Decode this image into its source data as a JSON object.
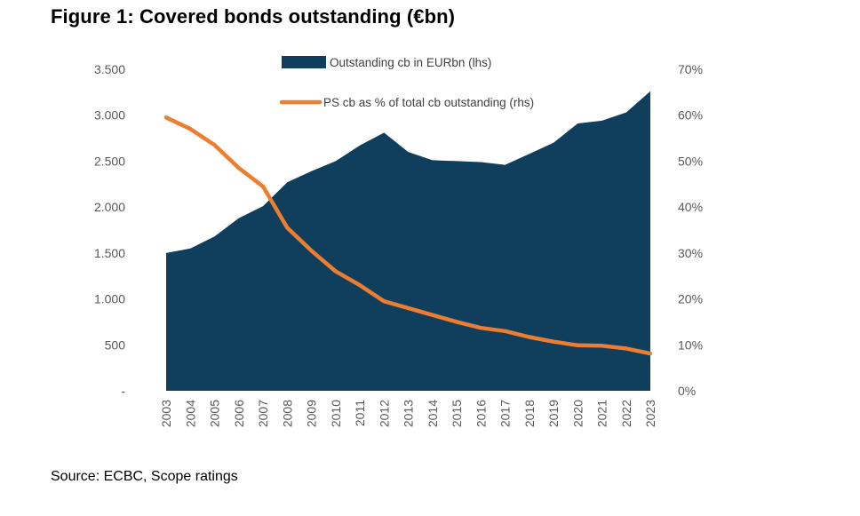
{
  "title": "Figure 1: Covered bonds outstanding (€bn)",
  "source": "Source: ECBC, Scope ratings",
  "colors": {
    "area": "#0f3f5c",
    "line": "#ed7d31",
    "axis_text": "#595959"
  },
  "chart_data": {
    "type": "area",
    "categories": [
      "2003",
      "2004",
      "2005",
      "2006",
      "2007",
      "2008",
      "2009",
      "2010",
      "2011",
      "2012",
      "2013",
      "2014",
      "2015",
      "2016",
      "2017",
      "2018",
      "2019",
      "2020",
      "2021",
      "2022",
      "2023"
    ],
    "series": [
      {
        "name": "Outstanding cb in EURbn (lhs)",
        "type": "area",
        "axis": "left",
        "values": [
          1500,
          1550,
          1680,
          1880,
          2010,
          2270,
          2390,
          2500,
          2670,
          2810,
          2600,
          2510,
          2500,
          2490,
          2460,
          2580,
          2700,
          2910,
          2940,
          3030,
          3260
        ]
      },
      {
        "name": "PS cb as % of total cb outstanding  (rhs)",
        "type": "line",
        "axis": "right",
        "values": [
          59.5,
          57.0,
          53.5,
          48.5,
          44.5,
          35.5,
          30.5,
          26.0,
          23.0,
          19.5,
          18.0,
          16.5,
          15.0,
          13.7,
          13.0,
          11.7,
          10.7,
          9.9,
          9.8,
          9.2,
          8.1
        ]
      }
    ],
    "y_left": {
      "ylim": [
        0,
        3500
      ],
      "ticks": [
        "-",
        "500",
        "1.000",
        "1.500",
        "2.000",
        "2.500",
        "3.000",
        "3.500"
      ]
    },
    "y_right": {
      "ylim": [
        0,
        70
      ],
      "ticks": [
        "0%",
        "10%",
        "20%",
        "30%",
        "40%",
        "50%",
        "60%",
        "70%"
      ]
    },
    "grid": false,
    "legend_position": "top-center"
  }
}
